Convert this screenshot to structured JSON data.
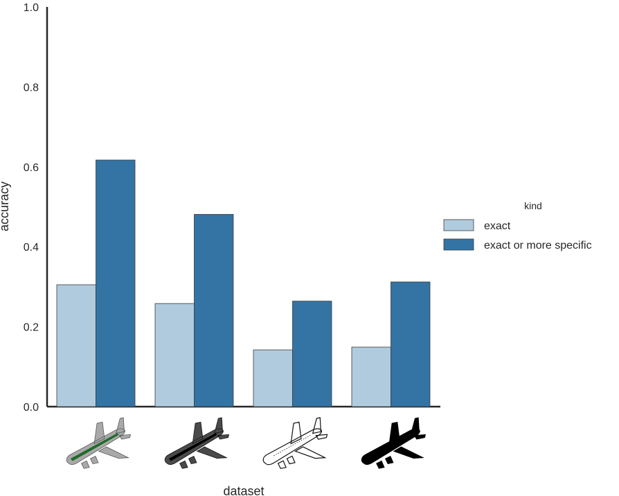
{
  "chart_data": {
    "type": "bar",
    "xlabel": "dataset",
    "ylabel": "accuracy",
    "ylim": [
      0,
      1.0
    ],
    "yticks": [
      "0.0",
      "0.2",
      "0.4",
      "0.6",
      "0.8",
      "1.0"
    ],
    "categories": [
      "color airplane",
      "grayscale airplane",
      "outline airplane",
      "silhouette airplane"
    ],
    "category_icons": [
      "airplane-color-icon",
      "airplane-grayscale-icon",
      "airplane-outline-icon",
      "airplane-silhouette-icon"
    ],
    "legend": {
      "title": "kind",
      "placement": "right"
    },
    "series": [
      {
        "name": "exact",
        "color": "#b0cbde",
        "values": [
          0.305,
          0.258,
          0.142,
          0.149
        ]
      },
      {
        "name": "exact or more specific",
        "color": "#3374a5",
        "values": [
          0.617,
          0.481,
          0.264,
          0.312
        ]
      }
    ],
    "grid": false
  }
}
